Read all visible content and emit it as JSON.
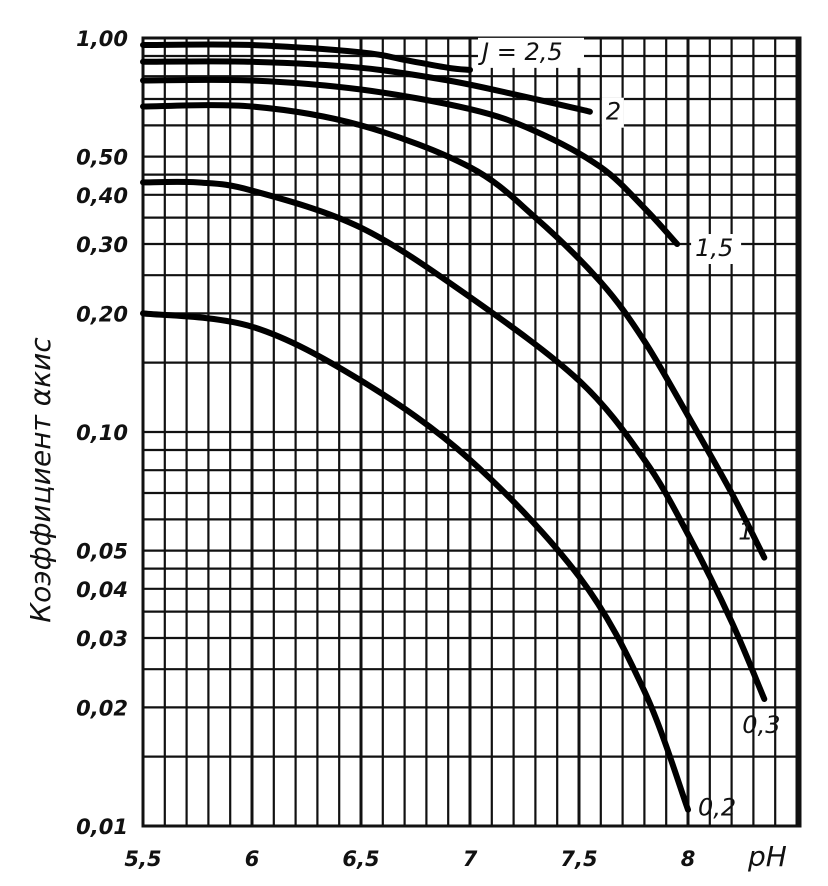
{
  "chart_data": {
    "type": "line",
    "ylabel": "Коэффициент αкис",
    "xlabel": "pH",
    "xlim": [
      5.5,
      8
    ],
    "ylim": [
      0.01,
      1.0
    ],
    "yscale": "log",
    "grid": true,
    "x_ticks": [
      {
        "value": 5.5,
        "label": "5,5"
      },
      {
        "value": 6,
        "label": "6"
      },
      {
        "value": 6.5,
        "label": "6,5"
      },
      {
        "value": 7,
        "label": "7"
      },
      {
        "value": 7.5,
        "label": "7,5"
      },
      {
        "value": 8,
        "label": "8"
      }
    ],
    "y_ticks": [
      {
        "value": 1.0,
        "label": "1,00"
      },
      {
        "value": 0.5,
        "label": "0,50"
      },
      {
        "value": 0.4,
        "label": "0,40"
      },
      {
        "value": 0.3,
        "label": "0,30"
      },
      {
        "value": 0.2,
        "label": "0,20"
      },
      {
        "value": 0.1,
        "label": "0,10"
      },
      {
        "value": 0.05,
        "label": "0,05"
      },
      {
        "value": 0.04,
        "label": "0,04"
      },
      {
        "value": 0.03,
        "label": "0,03"
      },
      {
        "value": 0.02,
        "label": "0,02"
      },
      {
        "value": 0.01,
        "label": "0,01"
      }
    ],
    "series": [
      {
        "name": "J = 2,5",
        "points": [
          [
            5.5,
            0.96
          ],
          [
            6.0,
            0.96
          ],
          [
            6.5,
            0.92
          ],
          [
            6.7,
            0.88
          ],
          [
            6.9,
            0.84
          ],
          [
            7.0,
            0.83
          ]
        ]
      },
      {
        "name": "2",
        "points": [
          [
            5.5,
            0.87
          ],
          [
            6.0,
            0.87
          ],
          [
            6.5,
            0.84
          ],
          [
            6.9,
            0.78
          ],
          [
            7.2,
            0.72
          ],
          [
            7.5,
            0.66
          ],
          [
            7.55,
            0.65
          ]
        ]
      },
      {
        "name": "1,5",
        "points": [
          [
            5.5,
            0.78
          ],
          [
            6.0,
            0.78
          ],
          [
            6.5,
            0.74
          ],
          [
            7.0,
            0.66
          ],
          [
            7.3,
            0.58
          ],
          [
            7.6,
            0.47
          ],
          [
            7.8,
            0.37
          ],
          [
            7.95,
            0.3
          ]
        ]
      },
      {
        "name": "1",
        "points": [
          [
            5.5,
            0.67
          ],
          [
            6.0,
            0.67
          ],
          [
            6.5,
            0.6
          ],
          [
            7.0,
            0.47
          ],
          [
            7.3,
            0.35
          ],
          [
            7.6,
            0.24
          ],
          [
            7.8,
            0.17
          ],
          [
            8.0,
            0.11
          ],
          [
            8.2,
            0.07
          ],
          [
            8.35,
            0.048
          ]
        ]
      },
      {
        "name": "0,3",
        "points": [
          [
            5.5,
            0.43
          ],
          [
            5.75,
            0.43
          ],
          [
            6.0,
            0.41
          ],
          [
            6.5,
            0.33
          ],
          [
            7.0,
            0.22
          ],
          [
            7.5,
            0.135
          ],
          [
            7.8,
            0.085
          ],
          [
            8.0,
            0.055
          ],
          [
            8.2,
            0.033
          ],
          [
            8.35,
            0.021
          ]
        ]
      },
      {
        "name": "0,2",
        "points": [
          [
            5.5,
            0.2
          ],
          [
            6.0,
            0.185
          ],
          [
            6.5,
            0.135
          ],
          [
            7.0,
            0.085
          ],
          [
            7.5,
            0.043
          ],
          [
            7.8,
            0.022
          ],
          [
            8.0,
            0.011
          ]
        ]
      }
    ]
  }
}
